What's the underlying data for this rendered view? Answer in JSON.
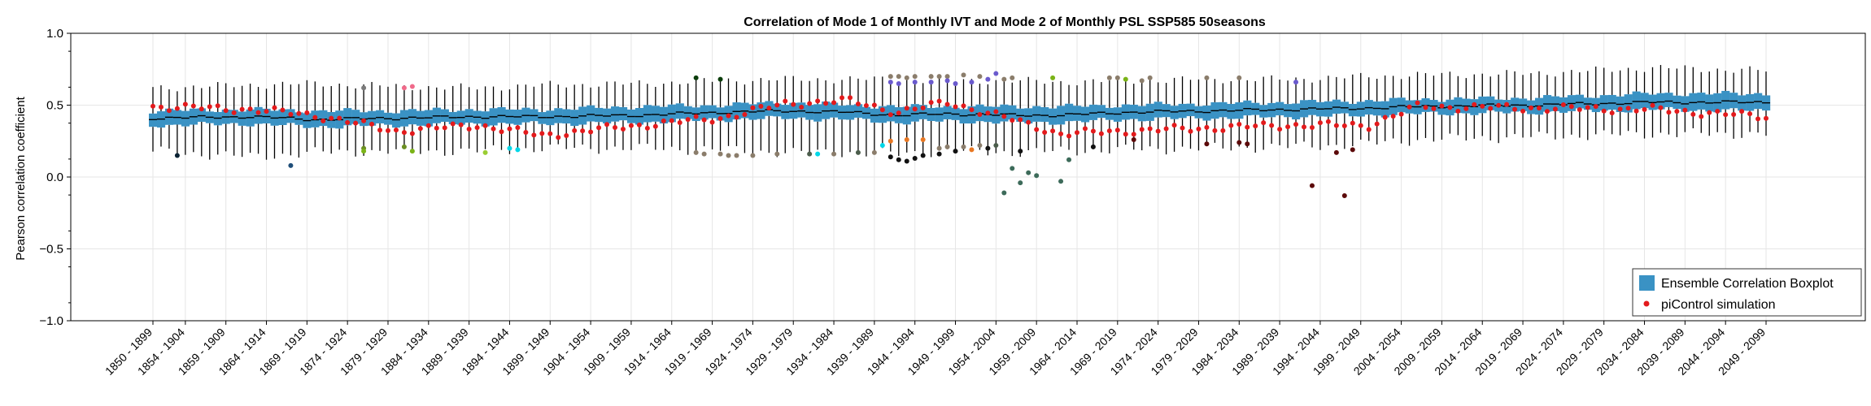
{
  "chart_data": {
    "type": "box",
    "title": "Correlation of Mode 1 of Monthly IVT and Mode 2 of Monthly PSL SSP585 50seasons",
    "xlabel": "",
    "ylabel": "Pearson correlation coefficient",
    "ylim": [
      -1.0,
      1.0
    ],
    "yticks": [
      "−1.0",
      "−0.5",
      "0.0",
      "0.5",
      "1.0"
    ],
    "grid": true,
    "legend_position": "bottom-right",
    "legend": [
      {
        "label": "Ensemble Correlation Boxplot",
        "color": "#3a92c4"
      },
      {
        "label": "piControl simulation",
        "color": "#e31a1c"
      }
    ],
    "colors": {
      "box": "#3a92c4",
      "median": "#000000",
      "whisker": "#000000",
      "picontrol": "#e31a1c",
      "grid": "#e6e6e6"
    },
    "window_start_year": 1850,
    "window_length_years": 50,
    "tick_labels": [
      "1850 - 1899",
      "1854 - 1904",
      "1859 - 1909",
      "1864 - 1914",
      "1869 - 1919",
      "1874 - 1924",
      "1879 - 1929",
      "1884 - 1934",
      "1889 - 1939",
      "1894 - 1944",
      "1899 - 1949",
      "1904 - 1954",
      "1909 - 1959",
      "1914 - 1964",
      "1919 - 1969",
      "1924 - 1974",
      "1929 - 1979",
      "1934 - 1984",
      "1939 - 1989",
      "1944 - 1994",
      "1949 - 1999",
      "1954 - 2004",
      "1959 - 2009",
      "1964 - 2014",
      "1969 - 2019",
      "1974 - 2024",
      "1979 - 2029",
      "1984 - 2034",
      "1989 - 2039",
      "1994 - 2044",
      "1999 - 2049",
      "2004 - 2054",
      "2009 - 2059",
      "2014 - 2064",
      "2019 - 2069",
      "2024 - 2074",
      "2029 - 2079",
      "2034 - 2084",
      "2039 - 2089",
      "2044 - 2094",
      "2049 - 2099"
    ],
    "anchors": [
      {
        "y": 1850,
        "q1": 0.36,
        "med": 0.41,
        "q3": 0.46,
        "wlo": 0.18,
        "whi": 0.62,
        "pi": 0.49
      },
      {
        "y": 1862,
        "q1": 0.37,
        "med": 0.42,
        "q3": 0.47,
        "wlo": 0.14,
        "whi": 0.64,
        "pi": 0.47
      },
      {
        "y": 1870,
        "q1": 0.35,
        "med": 0.4,
        "q3": 0.46,
        "wlo": 0.17,
        "whi": 0.65,
        "pi": 0.43
      },
      {
        "y": 1880,
        "q1": 0.36,
        "med": 0.41,
        "q3": 0.46,
        "wlo": 0.18,
        "whi": 0.63,
        "pi": 0.32
      },
      {
        "y": 1890,
        "q1": 0.37,
        "med": 0.42,
        "q3": 0.47,
        "wlo": 0.18,
        "whi": 0.62,
        "pi": 0.36
      },
      {
        "y": 1898,
        "q1": 0.37,
        "med": 0.42,
        "q3": 0.47,
        "wlo": 0.2,
        "whi": 0.64,
        "pi": 0.29
      },
      {
        "y": 1910,
        "q1": 0.38,
        "med": 0.43,
        "q3": 0.49,
        "wlo": 0.2,
        "whi": 0.65,
        "pi": 0.36
      },
      {
        "y": 1920,
        "q1": 0.4,
        "med": 0.45,
        "q3": 0.5,
        "wlo": 0.19,
        "whi": 0.67,
        "pi": 0.41
      },
      {
        "y": 1928,
        "q1": 0.41,
        "med": 0.46,
        "q3": 0.52,
        "wlo": 0.17,
        "whi": 0.68,
        "pi": 0.51
      },
      {
        "y": 1936,
        "q1": 0.4,
        "med": 0.45,
        "q3": 0.5,
        "wlo": 0.17,
        "whi": 0.68,
        "pi": 0.53
      },
      {
        "y": 1942,
        "q1": 0.38,
        "med": 0.43,
        "q3": 0.49,
        "wlo": 0.16,
        "whi": 0.68,
        "pi": 0.45
      },
      {
        "y": 1948,
        "q1": 0.39,
        "med": 0.44,
        "q3": 0.49,
        "wlo": 0.18,
        "whi": 0.67,
        "pi": 0.52
      },
      {
        "y": 1956,
        "q1": 0.38,
        "med": 0.43,
        "q3": 0.49,
        "wlo": 0.17,
        "whi": 0.67,
        "pi": 0.4
      },
      {
        "y": 1962,
        "q1": 0.38,
        "med": 0.43,
        "q3": 0.49,
        "wlo": 0.18,
        "whi": 0.66,
        "pi": 0.3
      },
      {
        "y": 1970,
        "q1": 0.4,
        "med": 0.45,
        "q3": 0.5,
        "wlo": 0.19,
        "whi": 0.67,
        "pi": 0.32
      },
      {
        "y": 1980,
        "q1": 0.41,
        "med": 0.46,
        "q3": 0.51,
        "wlo": 0.2,
        "whi": 0.68,
        "pi": 0.34
      },
      {
        "y": 1990,
        "q1": 0.42,
        "med": 0.47,
        "q3": 0.52,
        "wlo": 0.21,
        "whi": 0.68,
        "pi": 0.36
      },
      {
        "y": 2000,
        "q1": 0.43,
        "med": 0.48,
        "q3": 0.53,
        "wlo": 0.23,
        "whi": 0.7,
        "pi": 0.36
      },
      {
        "y": 2006,
        "q1": 0.44,
        "med": 0.49,
        "q3": 0.54,
        "wlo": 0.26,
        "whi": 0.71,
        "pi": 0.49
      },
      {
        "y": 2020,
        "q1": 0.45,
        "med": 0.5,
        "q3": 0.55,
        "wlo": 0.28,
        "whi": 0.72,
        "pi": 0.48
      },
      {
        "y": 2035,
        "q1": 0.47,
        "med": 0.52,
        "q3": 0.58,
        "wlo": 0.3,
        "whi": 0.76,
        "pi": 0.47
      },
      {
        "y": 2049,
        "q1": 0.46,
        "med": 0.52,
        "q3": 0.58,
        "wlo": 0.3,
        "whi": 0.74,
        "pi": 0.42
      }
    ],
    "outliers": [
      {
        "x": 1853,
        "y": 0.15,
        "color": "#0a2233"
      },
      {
        "x": 1867,
        "y": 0.08,
        "color": "#1f4e79"
      },
      {
        "x": 1876,
        "y": 0.62,
        "color": "#7a7a7a"
      },
      {
        "x": 1876,
        "y": 0.2,
        "color": "#6b8e23"
      },
      {
        "x": 1876,
        "y": 0.18,
        "color": "#7ab317"
      },
      {
        "x": 1881,
        "y": 0.62,
        "color": "#f06a8a"
      },
      {
        "x": 1882,
        "y": 0.63,
        "color": "#f06a8a"
      },
      {
        "x": 1881,
        "y": 0.21,
        "color": "#6b8e23"
      },
      {
        "x": 1882,
        "y": 0.18,
        "color": "#7ab317"
      },
      {
        "x": 1891,
        "y": 0.17,
        "color": "#9acd32"
      },
      {
        "x": 1894,
        "y": 0.2,
        "color": "#00d7e8"
      },
      {
        "x": 1895,
        "y": 0.19,
        "color": "#00d7e8"
      },
      {
        "x": 1917,
        "y": 0.69,
        "color": "#0b3d0b"
      },
      {
        "x": 1917,
        "y": 0.17,
        "color": "#8b7d6b"
      },
      {
        "x": 1918,
        "y": 0.16,
        "color": "#8b7d6b"
      },
      {
        "x": 1920,
        "y": 0.68,
        "color": "#0b3d0b"
      },
      {
        "x": 1920,
        "y": 0.16,
        "color": "#8b7d6b"
      },
      {
        "x": 1921,
        "y": 0.15,
        "color": "#8b7d6b"
      },
      {
        "x": 1922,
        "y": 0.15,
        "color": "#8b7d6b"
      },
      {
        "x": 1924,
        "y": 0.15,
        "color": "#8b7d6b"
      },
      {
        "x": 1927,
        "y": 0.16,
        "color": "#8b7d6b"
      },
      {
        "x": 1931,
        "y": 0.16,
        "color": "#4b5d4b"
      },
      {
        "x": 1932,
        "y": 0.16,
        "color": "#00d7e8"
      },
      {
        "x": 1934,
        "y": 0.16,
        "color": "#8b7d6b"
      },
      {
        "x": 1937,
        "y": 0.17,
        "color": "#4b5d4b"
      },
      {
        "x": 1939,
        "y": 0.17,
        "color": "#8b7d6b"
      },
      {
        "x": 1940,
        "y": 0.22,
        "color": "#00d7e8"
      },
      {
        "x": 1941,
        "y": 0.7,
        "color": "#8b7d6b"
      },
      {
        "x": 1941,
        "y": 0.66,
        "color": "#6a5acd"
      },
      {
        "x": 1941,
        "y": 0.25,
        "color": "#e87722"
      },
      {
        "x": 1941,
        "y": 0.14,
        "color": "#111111"
      },
      {
        "x": 1942,
        "y": 0.7,
        "color": "#8b7d6b"
      },
      {
        "x": 1942,
        "y": 0.65,
        "color": "#6a5acd"
      },
      {
        "x": 1942,
        "y": 0.12,
        "color": "#111111"
      },
      {
        "x": 1943,
        "y": 0.69,
        "color": "#8b7d6b"
      },
      {
        "x": 1943,
        "y": 0.26,
        "color": "#e87722"
      },
      {
        "x": 1943,
        "y": 0.11,
        "color": "#111111"
      },
      {
        "x": 1944,
        "y": 0.7,
        "color": "#8b7d6b"
      },
      {
        "x": 1944,
        "y": 0.66,
        "color": "#6a5acd"
      },
      {
        "x": 1944,
        "y": 0.13,
        "color": "#111111"
      },
      {
        "x": 1945,
        "y": 0.26,
        "color": "#e87722"
      },
      {
        "x": 1945,
        "y": 0.15,
        "color": "#111111"
      },
      {
        "x": 1946,
        "y": 0.7,
        "color": "#8b7d6b"
      },
      {
        "x": 1946,
        "y": 0.66,
        "color": "#6a5acd"
      },
      {
        "x": 1947,
        "y": 0.7,
        "color": "#8b7d6b"
      },
      {
        "x": 1947,
        "y": 0.2,
        "color": "#8b7d6b"
      },
      {
        "x": 1947,
        "y": 0.16,
        "color": "#111111"
      },
      {
        "x": 1948,
        "y": 0.7,
        "color": "#8b7d6b"
      },
      {
        "x": 1948,
        "y": 0.67,
        "color": "#6a5acd"
      },
      {
        "x": 1948,
        "y": 0.21,
        "color": "#8b7d6b"
      },
      {
        "x": 1949,
        "y": 0.65,
        "color": "#6a5acd"
      },
      {
        "x": 1949,
        "y": 0.18,
        "color": "#111111"
      },
      {
        "x": 1950,
        "y": 0.71,
        "color": "#8b7d6b"
      },
      {
        "x": 1950,
        "y": 0.21,
        "color": "#8b7d6b"
      },
      {
        "x": 1951,
        "y": 0.66,
        "color": "#6a5acd"
      },
      {
        "x": 1951,
        "y": 0.19,
        "color": "#e87722"
      },
      {
        "x": 1952,
        "y": 0.7,
        "color": "#8b7d6b"
      },
      {
        "x": 1952,
        "y": 0.22,
        "color": "#8b7d6b"
      },
      {
        "x": 1953,
        "y": 0.68,
        "color": "#6a5acd"
      },
      {
        "x": 1953,
        "y": 0.2,
        "color": "#111111"
      },
      {
        "x": 1954,
        "y": 0.72,
        "color": "#6a5acd"
      },
      {
        "x": 1954,
        "y": 0.22,
        "color": "#4b5d4b"
      },
      {
        "x": 1955,
        "y": 0.68,
        "color": "#8b7d6b"
      },
      {
        "x": 1955,
        "y": -0.11,
        "color": "#3d6b5a"
      },
      {
        "x": 1956,
        "y": 0.69,
        "color": "#8b7d6b"
      },
      {
        "x": 1956,
        "y": 0.06,
        "color": "#3d6b5a"
      },
      {
        "x": 1957,
        "y": 0.18,
        "color": "#111111"
      },
      {
        "x": 1957,
        "y": -0.04,
        "color": "#3d6b5a"
      },
      {
        "x": 1958,
        "y": 0.03,
        "color": "#3d6b5a"
      },
      {
        "x": 1959,
        "y": 0.01,
        "color": "#3d6b5a"
      },
      {
        "x": 1961,
        "y": 0.69,
        "color": "#7ab317"
      },
      {
        "x": 1962,
        "y": -0.03,
        "color": "#3d6b5a"
      },
      {
        "x": 1963,
        "y": 0.12,
        "color": "#3d6b5a"
      },
      {
        "x": 1966,
        "y": 0.21,
        "color": "#111111"
      },
      {
        "x": 1968,
        "y": 0.69,
        "color": "#8b7d6b"
      },
      {
        "x": 1969,
        "y": 0.69,
        "color": "#8b7d6b"
      },
      {
        "x": 1970,
        "y": 0.68,
        "color": "#7ab317"
      },
      {
        "x": 1971,
        "y": 0.26,
        "color": "#5c0a0a"
      },
      {
        "x": 1972,
        "y": 0.67,
        "color": "#8b7d6b"
      },
      {
        "x": 1973,
        "y": 0.69,
        "color": "#8b7d6b"
      },
      {
        "x": 1980,
        "y": 0.69,
        "color": "#8b7d6b"
      },
      {
        "x": 1980,
        "y": 0.23,
        "color": "#5c0a0a"
      },
      {
        "x": 1984,
        "y": 0.69,
        "color": "#8b7d6b"
      },
      {
        "x": 1984,
        "y": 0.24,
        "color": "#5c0a0a"
      },
      {
        "x": 1985,
        "y": 0.23,
        "color": "#5c0a0a"
      },
      {
        "x": 1991,
        "y": 0.66,
        "color": "#6a5acd"
      },
      {
        "x": 1993,
        "y": -0.06,
        "color": "#5c0a0a"
      },
      {
        "x": 1996,
        "y": 0.17,
        "color": "#5c0a0a"
      },
      {
        "x": 1997,
        "y": -0.13,
        "color": "#5c0a0a"
      },
      {
        "x": 1998,
        "y": 0.19,
        "color": "#5c0a0a"
      }
    ]
  }
}
